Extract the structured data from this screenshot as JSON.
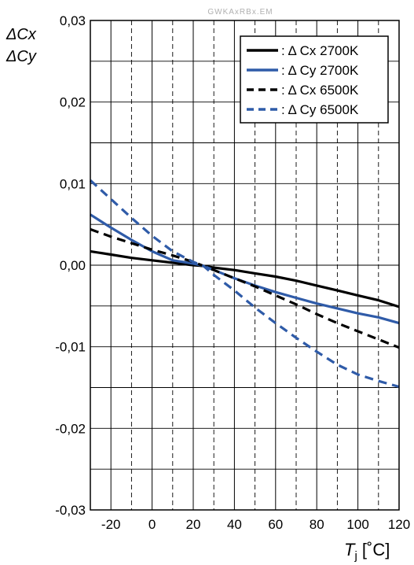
{
  "watermark": "GWKAxRBx.EM",
  "chart_data": {
    "type": "line",
    "ylabel_lines": [
      "ΔCx",
      "ΔCy"
    ],
    "xlabel_main": "T",
    "xlabel_sub": "j",
    "xlabel_unit": " [˚C]",
    "xlim": [
      -30,
      120
    ],
    "ylim": [
      -0.03,
      0.03
    ],
    "xticks": [
      -20,
      0,
      20,
      40,
      60,
      80,
      100,
      120
    ],
    "xtick_labels": [
      "-20",
      "0",
      "20",
      "40",
      "60",
      "80",
      "100",
      "120"
    ],
    "yticks": [
      -0.03,
      -0.02,
      -0.01,
      0.0,
      0.01,
      0.02,
      0.03
    ],
    "ytick_labels": [
      "-0,03",
      "-0,02",
      "-0,01",
      "0,00",
      "0,01",
      "0,02",
      "0,03"
    ],
    "grid": true,
    "legend_position": "top-right",
    "series": [
      {
        "name": ": Δ Cx 2700K",
        "color": "#000000",
        "style": "solid",
        "x": [
          -30,
          -20,
          -10,
          0,
          10,
          20,
          25,
          30,
          40,
          50,
          60,
          70,
          80,
          90,
          100,
          110,
          120
        ],
        "y": [
          0.0017,
          0.0013,
          0.0009,
          0.0006,
          0.0003,
          0.0,
          -0.0001,
          -0.0003,
          -0.0006,
          -0.001,
          -0.0014,
          -0.0019,
          -0.0025,
          -0.0031,
          -0.0037,
          -0.0043,
          -0.0051
        ]
      },
      {
        "name": ": Δ Cy 2700K",
        "color": "#2f5ba8",
        "style": "solid",
        "x": [
          -30,
          -20,
          -10,
          0,
          10,
          20,
          25,
          30,
          40,
          50,
          60,
          70,
          80,
          90,
          100,
          110,
          120
        ],
        "y": [
          0.0062,
          0.0046,
          0.0031,
          0.0017,
          0.0006,
          0.0002,
          -0.0001,
          -0.0006,
          -0.0016,
          -0.0025,
          -0.0033,
          -0.004,
          -0.0047,
          -0.0053,
          -0.0059,
          -0.0064,
          -0.0071
        ]
      },
      {
        "name": ": Δ Cx 6500K",
        "color": "#000000",
        "style": "dashed",
        "x": [
          -30,
          -20,
          -10,
          0,
          10,
          20,
          25,
          30,
          40,
          50,
          60,
          70,
          80,
          90,
          100,
          110,
          120
        ],
        "y": [
          0.0044,
          0.0035,
          0.0027,
          0.0019,
          0.0012,
          0.0004,
          -0.0001,
          -0.0006,
          -0.0016,
          -0.0026,
          -0.0037,
          -0.0048,
          -0.006,
          -0.0071,
          -0.0081,
          -0.0091,
          -0.0101
        ]
      },
      {
        "name": ": Δ Cy 6500K",
        "color": "#2f5ba8",
        "style": "dashed",
        "x": [
          -30,
          -20,
          -10,
          0,
          10,
          20,
          25,
          30,
          40,
          50,
          60,
          70,
          80,
          90,
          100,
          110,
          120
        ],
        "y": [
          0.0104,
          0.0081,
          0.0058,
          0.0036,
          0.0017,
          0.0004,
          -0.0001,
          -0.0012,
          -0.0031,
          -0.0052,
          -0.0071,
          -0.0089,
          -0.0106,
          -0.0122,
          -0.0134,
          -0.0142,
          -0.0149
        ]
      }
    ]
  }
}
